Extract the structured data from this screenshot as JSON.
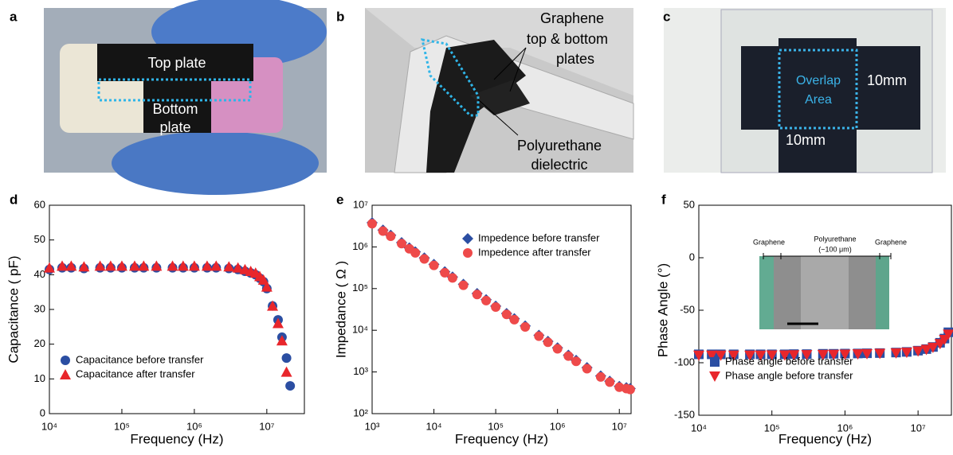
{
  "photos": [
    {
      "panel": "a",
      "labels": [
        "Top plate",
        "Bottom",
        "plate"
      ]
    },
    {
      "panel": "b",
      "labels": [
        "Graphene",
        "top & bottom",
        "plates",
        "Polyurethane",
        "dielectric"
      ]
    },
    {
      "panel": "c",
      "labels": [
        "Overlap",
        "Area",
        "10mm",
        "10mm"
      ]
    }
  ],
  "chart_data": [
    {
      "panel_label": "d",
      "type": "scatter",
      "xlabel": "Frequency (Hz)",
      "ylabel": "Capacitance ( pF)",
      "xscale": "log",
      "yscale": "linear",
      "xlim": [
        10000,
        33000000
      ],
      "ylim": [
        0,
        60
      ],
      "xticks": [
        {
          "value": 10000,
          "label": "10⁴"
        },
        {
          "value": 100000,
          "label": "10⁵"
        },
        {
          "value": 1000000,
          "label": "10⁶"
        },
        {
          "value": 10000000,
          "label": "10⁷"
        }
      ],
      "yticks": [
        0,
        10,
        20,
        30,
        40,
        50,
        60
      ],
      "legend": "lower left",
      "x": [
        10000,
        15000,
        20000,
        30000,
        50000,
        70000,
        100000,
        150000,
        200000,
        300000,
        500000,
        700000,
        1000000,
        1500000,
        2000000,
        3000000,
        4000000,
        5000000,
        6000000,
        7000000,
        8000000,
        9000000,
        10000000,
        12000000,
        14300000,
        16200000,
        18700000,
        21000000
      ],
      "series": [
        {
          "name": "Capacitance before transfer",
          "color": "#2b4ea2",
          "marker": "circle",
          "values": [
            41.5,
            42,
            42,
            41.8,
            42,
            42,
            42,
            42,
            42,
            42,
            42,
            42,
            42,
            42,
            42,
            41.8,
            41.5,
            41,
            40.5,
            40,
            39,
            38,
            36,
            31,
            27,
            22,
            16,
            8
          ]
        },
        {
          "name": "Capacitance after transfer",
          "color": "#e8262b",
          "marker": "triangle",
          "values": [
            42,
            42.5,
            42.5,
            42.3,
            42.5,
            42.5,
            42.5,
            42.5,
            42.5,
            42.5,
            42.5,
            42.5,
            42.5,
            42.5,
            42.5,
            42.3,
            42,
            41.5,
            41,
            40.5,
            39.5,
            38.5,
            36.5,
            31,
            26,
            21,
            12,
            null
          ]
        }
      ]
    },
    {
      "panel_label": "e",
      "type": "scatter",
      "xlabel": "Frequency (Hz)",
      "ylabel": "Impedance ( Ω )",
      "xscale": "log",
      "yscale": "log",
      "xlim": [
        1000,
        15500000
      ],
      "ylim": [
        100,
        10000000
      ],
      "xticks": [
        {
          "value": 1000,
          "label": "10³"
        },
        {
          "value": 10000,
          "label": "10⁴"
        },
        {
          "value": 100000,
          "label": "10⁵"
        },
        {
          "value": 1000000,
          "label": "10⁶"
        },
        {
          "value": 10000000,
          "label": "10⁷"
        }
      ],
      "yticks": [
        {
          "value": 100,
          "label": "10²"
        },
        {
          "value": 1000,
          "label": "10³"
        },
        {
          "value": 10000,
          "label": "10⁴"
        },
        {
          "value": 100000,
          "label": "10⁵"
        },
        {
          "value": 1000000,
          "label": "10⁶"
        },
        {
          "value": 10000000,
          "label": "10⁷"
        }
      ],
      "legend": "upper right",
      "x": [
        1000,
        1500,
        2000,
        3000,
        4000,
        5000,
        7000,
        10000,
        15000,
        20000,
        30000,
        50000,
        70000,
        100000,
        150000,
        200000,
        300000,
        500000,
        700000,
        1000000,
        1500000,
        2000000,
        3000000,
        5000000,
        7000000,
        10000000,
        13000000,
        15000000
      ],
      "series": [
        {
          "name": "Impedence before transfer",
          "color": "#2b4ea2",
          "marker": "diamond",
          "values": [
            3800000,
            2530000,
            1900000,
            1270000,
            950000,
            760000,
            543000,
            380000,
            253000,
            190000,
            127000,
            76000,
            54300,
            38000,
            25300,
            19000,
            12700,
            7600,
            5430,
            3800,
            2530,
            1900,
            1270,
            800,
            600,
            450,
            420,
            400
          ]
        },
        {
          "name": "Impedence after transfer",
          "color": "#ee4a4a",
          "marker": "circle",
          "values": [
            3600000,
            2400000,
            1800000,
            1200000,
            900000,
            720000,
            515000,
            360000,
            240000,
            180000,
            120000,
            72000,
            51500,
            36000,
            24000,
            18000,
            12000,
            7200,
            5150,
            3600,
            2400,
            1800,
            1200,
            760,
            570,
            430,
            400,
            380
          ]
        }
      ]
    },
    {
      "panel_label": "f",
      "type": "scatter",
      "xlabel": "Frequency (Hz)",
      "ylabel": "Phase Angle (°)",
      "xscale": "log",
      "yscale": "linear",
      "xlim": [
        10000,
        28600000
      ],
      "ylim": [
        -150,
        50
      ],
      "xticks": [
        {
          "value": 10000,
          "label": "10⁴"
        },
        {
          "value": 100000,
          "label": "10⁵"
        },
        {
          "value": 1000000,
          "label": "10⁶"
        },
        {
          "value": 10000000,
          "label": "10⁷"
        }
      ],
      "yticks": [
        -150,
        -100,
        -50,
        0,
        50
      ],
      "legend": "lower left",
      "inset": {
        "labels": [
          "Graphene",
          "Polyurethane",
          "(~100 μm)",
          "Graphene"
        ]
      },
      "x": [
        10000,
        15000,
        20000,
        30000,
        50000,
        70000,
        100000,
        150000,
        200000,
        300000,
        500000,
        700000,
        1000000,
        1500000,
        2000000,
        3000000,
        5000000,
        7000000,
        10000000,
        13000000,
        16000000,
        20000000,
        23000000,
        26000000
      ],
      "series": [
        {
          "name": "Phase angle before transfer",
          "color": "#2b4ea2",
          "marker": "square",
          "values": [
            -92,
            -92,
            -92,
            -92,
            -92,
            -92,
            -92,
            -92,
            -91.8,
            -91.8,
            -91.5,
            -91.5,
            -91.3,
            -91.2,
            -91,
            -90.8,
            -90.3,
            -89.7,
            -88.5,
            -87,
            -85,
            -81,
            -77,
            -71
          ]
        },
        {
          "name": "Phase angle before transfer",
          "color": "#e8262b",
          "marker": "triangle-down",
          "values": [
            -93,
            -93,
            -93,
            -93,
            -93,
            -93,
            -92.8,
            -92.8,
            -92.6,
            -92.5,
            -92.3,
            -92.2,
            -92,
            -91.8,
            -91.6,
            -91.3,
            -90.8,
            -90.2,
            -89,
            -87.5,
            -85.5,
            -82,
            -78,
            -73
          ]
        }
      ]
    }
  ]
}
